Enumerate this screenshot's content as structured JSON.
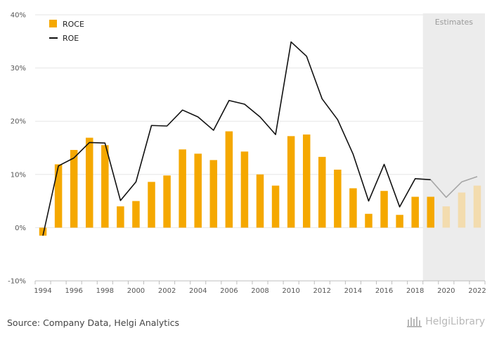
{
  "chart_data": {
    "type": "bar",
    "categories": [
      "1994",
      "1995",
      "1996",
      "1997",
      "1998",
      "1999",
      "2000",
      "2001",
      "2002",
      "2003",
      "2004",
      "2005",
      "2006",
      "2007",
      "2008",
      "2009",
      "2010",
      "2011",
      "2012",
      "2013",
      "2014",
      "2015",
      "2016",
      "2017",
      "2018",
      "2019",
      "2020",
      "2021",
      "2022"
    ],
    "x_tick_labels": [
      "1994",
      "1996",
      "1998",
      "2000",
      "2002",
      "2004",
      "2006",
      "2008",
      "2010",
      "2012",
      "2014",
      "2016",
      "2018",
      "2020",
      "2022"
    ],
    "y_tick_labels": [
      "40%",
      "30%",
      "20%",
      "10%",
      "0%",
      "-10%"
    ],
    "ylim": [
      -10,
      40
    ],
    "series": [
      {
        "name": "ROCE",
        "kind": "bar",
        "color": "#f5a800",
        "estimate_color": "#f3dcae",
        "values": [
          -1.5,
          11.9,
          14.6,
          16.9,
          15.5,
          4.0,
          5.0,
          8.6,
          9.8,
          14.7,
          13.9,
          12.7,
          18.1,
          14.3,
          10.0,
          7.9,
          17.2,
          17.5,
          13.3,
          10.9,
          7.4,
          2.6,
          6.9,
          2.4,
          5.8,
          5.8,
          4.0,
          6.6,
          7.9
        ]
      },
      {
        "name": "ROE",
        "kind": "line",
        "color": "#111111",
        "estimate_color": "#a6a6a6",
        "values": [
          -1.5,
          11.6,
          13.1,
          16.0,
          15.9,
          5.1,
          8.6,
          19.2,
          19.1,
          22.1,
          20.8,
          18.3,
          23.9,
          23.2,
          20.8,
          17.5,
          34.9,
          32.2,
          24.2,
          20.3,
          13.8,
          5.0,
          11.9,
          3.9,
          9.2,
          9.0,
          5.7,
          8.6,
          9.6
        ]
      }
    ],
    "estimates_from": "2019",
    "estimates_label": "Estimates",
    "legend_position": "top-left",
    "grid": true
  },
  "footer": {
    "source": "Source: Company Data, Helgi Analytics",
    "brand": "HelgiLibrary"
  },
  "colors": {
    "grid": "#e6e6e6",
    "axis": "#bdbdbd",
    "estimates_band": "#ececec"
  }
}
